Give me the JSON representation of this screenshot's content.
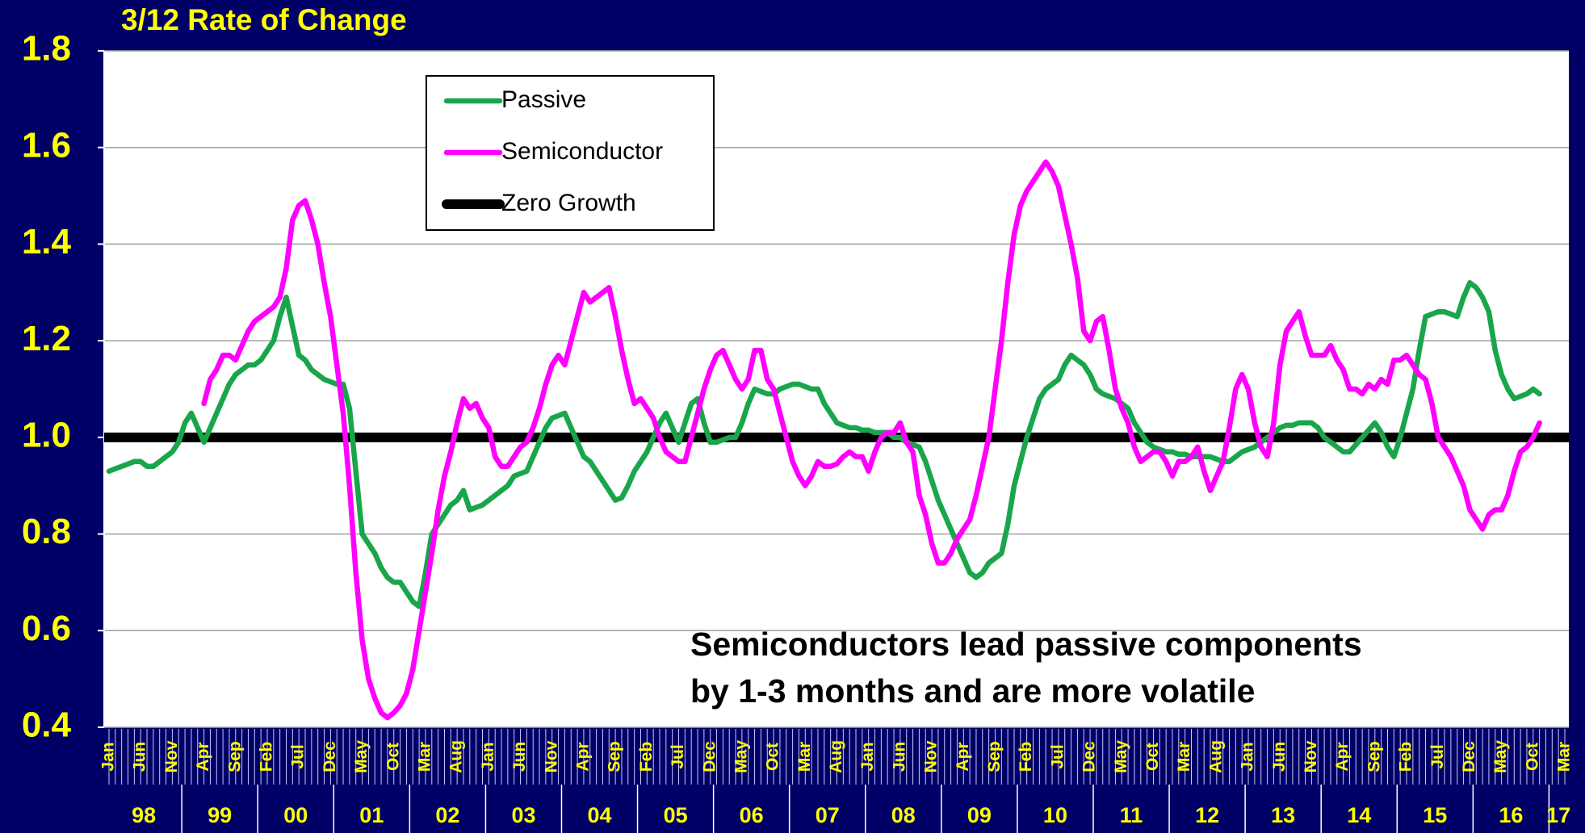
{
  "chart_data": {
    "type": "line",
    "title": "3/12 Rate of Change",
    "annotation": [
      "Semiconductors lead passive components",
      "by 1-3 months and are more volatile"
    ],
    "categories": [
      "Jan",
      null,
      null,
      null,
      null,
      "Jun",
      null,
      null,
      null,
      null,
      "Nov",
      null,
      null,
      null,
      null,
      "Apr",
      null,
      null,
      null,
      null,
      "Sep",
      null,
      null,
      null,
      null,
      "Feb",
      null,
      null,
      null,
      null,
      "Jul",
      null,
      null,
      null,
      null,
      "Dec",
      null,
      null,
      null,
      null,
      "May",
      null,
      null,
      null,
      null,
      "Oct",
      null,
      null,
      null,
      null,
      "Mar",
      null,
      null,
      null,
      null,
      "Aug",
      null,
      null,
      null,
      null,
      "Jan",
      null,
      null,
      null,
      null,
      "Jun",
      null,
      null,
      null,
      null,
      "Nov",
      null,
      null,
      null,
      null,
      "Apr",
      null,
      null,
      null,
      null,
      "Sep",
      null,
      null,
      null,
      null,
      "Feb",
      null,
      null,
      null,
      null,
      "Jul",
      null,
      null,
      null,
      null,
      "Dec",
      null,
      null,
      null,
      null,
      "May",
      null,
      null,
      null,
      null,
      "Oct",
      null,
      null,
      null,
      null,
      "Mar",
      null,
      null,
      null,
      null,
      "Aug",
      null,
      null,
      null,
      null,
      "Jan",
      null,
      null,
      null,
      null,
      "Jun",
      null,
      null,
      null,
      null,
      "Nov",
      null,
      null,
      null,
      null,
      "Apr",
      null,
      null,
      null,
      null,
      "Sep",
      null,
      null,
      null,
      null,
      "Feb",
      null,
      null,
      null,
      null,
      "Jul",
      null,
      null,
      null,
      null,
      "Dec",
      null,
      null,
      null,
      null,
      "May",
      null,
      null,
      null,
      null,
      "Oct",
      null,
      null,
      null,
      null,
      "Mar",
      null,
      null,
      null,
      null,
      "Aug",
      null,
      null,
      null,
      null,
      "Jan",
      null,
      null,
      null,
      null,
      "Jun",
      null,
      null,
      null,
      null,
      "Nov",
      null,
      null,
      null,
      null,
      "Apr",
      null,
      null,
      null,
      null,
      "Sep",
      null,
      null,
      null,
      null,
      "Feb",
      null,
      null,
      null,
      null,
      "Jul",
      null,
      null,
      null,
      null,
      "Dec",
      null,
      null,
      null,
      null,
      "May",
      null,
      null,
      null,
      null,
      "Oct",
      null,
      null,
      null,
      null,
      "Mar"
    ],
    "years": [
      "98",
      "99",
      "00",
      "01",
      "02",
      "03",
      "04",
      "05",
      "06",
      "07",
      "08",
      "09",
      "10",
      "11",
      "12",
      "13",
      "14",
      "15",
      "16",
      "17"
    ],
    "series": [
      {
        "name": "Passive",
        "color": "#19a64a",
        "values": [
          0.93,
          0.935,
          0.94,
          0.945,
          0.95,
          0.95,
          0.94,
          0.94,
          0.95,
          0.96,
          0.97,
          0.99,
          1.03,
          1.05,
          1.02,
          0.99,
          1.02,
          1.05,
          1.08,
          1.11,
          1.13,
          1.14,
          1.15,
          1.15,
          1.16,
          1.18,
          1.2,
          1.25,
          1.29,
          1.23,
          1.17,
          1.16,
          1.14,
          1.13,
          1.12,
          1.115,
          1.11,
          1.11,
          1.06,
          0.93,
          0.8,
          0.78,
          0.76,
          0.73,
          0.71,
          0.7,
          0.7,
          0.68,
          0.66,
          0.65,
          0.72,
          0.8,
          0.82,
          0.84,
          0.86,
          0.87,
          0.89,
          0.85,
          0.855,
          0.86,
          0.87,
          0.88,
          0.89,
          0.9,
          0.92,
          0.925,
          0.93,
          0.96,
          0.99,
          1.02,
          1.04,
          1.045,
          1.05,
          1.02,
          0.99,
          0.96,
          0.95,
          0.93,
          0.91,
          0.89,
          0.87,
          0.875,
          0.9,
          0.93,
          0.95,
          0.97,
          1.0,
          1.03,
          1.05,
          1.02,
          0.99,
          1.03,
          1.07,
          1.08,
          1.03,
          0.99,
          0.99,
          0.995,
          1.0,
          1.0,
          1.03,
          1.07,
          1.1,
          1.095,
          1.09,
          1.09,
          1.1,
          1.105,
          1.11,
          1.11,
          1.105,
          1.1,
          1.1,
          1.07,
          1.05,
          1.03,
          1.025,
          1.02,
          1.02,
          1.015,
          1.015,
          1.01,
          1.01,
          1.01,
          1.0,
          1.0,
          0.99,
          0.985,
          0.98,
          0.95,
          0.91,
          0.87,
          0.84,
          0.81,
          0.78,
          0.75,
          0.72,
          0.71,
          0.72,
          0.74,
          0.75,
          0.76,
          0.82,
          0.9,
          0.95,
          1.0,
          1.04,
          1.08,
          1.1,
          1.11,
          1.12,
          1.15,
          1.17,
          1.16,
          1.15,
          1.13,
          1.1,
          1.09,
          1.085,
          1.08,
          1.07,
          1.06,
          1.03,
          1.01,
          0.99,
          0.98,
          0.975,
          0.97,
          0.97,
          0.965,
          0.965,
          0.96,
          0.96,
          0.96,
          0.96,
          0.955,
          0.95,
          0.95,
          0.96,
          0.97,
          0.975,
          0.98,
          0.99,
          1.0,
          1.01,
          1.02,
          1.025,
          1.025,
          1.03,
          1.03,
          1.03,
          1.02,
          1.0,
          0.99,
          0.98,
          0.97,
          0.97,
          0.985,
          1.0,
          1.015,
          1.03,
          1.01,
          0.98,
          0.96,
          1.0,
          1.05,
          1.1,
          1.18,
          1.25,
          1.255,
          1.26,
          1.26,
          1.255,
          1.25,
          1.29,
          1.32,
          1.31,
          1.29,
          1.26,
          1.18,
          1.13,
          1.1,
          1.08,
          1.085,
          1.09,
          1.1,
          1.09,
          null,
          null,
          null,
          null
        ]
      },
      {
        "name": "Semiconductor",
        "color": "#ff00ff",
        "values": [
          null,
          null,
          null,
          null,
          null,
          null,
          null,
          null,
          null,
          null,
          null,
          null,
          null,
          null,
          null,
          1.07,
          1.12,
          1.14,
          1.17,
          1.17,
          1.16,
          1.19,
          1.22,
          1.24,
          1.25,
          1.26,
          1.27,
          1.29,
          1.35,
          1.45,
          1.48,
          1.49,
          1.45,
          1.4,
          1.32,
          1.25,
          1.15,
          1.05,
          0.9,
          0.72,
          0.58,
          0.5,
          0.46,
          0.43,
          0.42,
          0.43,
          0.445,
          0.47,
          0.52,
          0.6,
          0.68,
          0.76,
          0.85,
          0.92,
          0.97,
          1.03,
          1.08,
          1.06,
          1.07,
          1.04,
          1.02,
          0.96,
          0.94,
          0.94,
          0.96,
          0.98,
          0.99,
          1.02,
          1.06,
          1.11,
          1.15,
          1.17,
          1.15,
          1.2,
          1.25,
          1.3,
          1.28,
          1.29,
          1.3,
          1.31,
          1.25,
          1.18,
          1.12,
          1.07,
          1.08,
          1.06,
          1.04,
          1.0,
          0.97,
          0.96,
          0.95,
          0.95,
          1.0,
          1.05,
          1.1,
          1.14,
          1.17,
          1.18,
          1.15,
          1.12,
          1.1,
          1.12,
          1.18,
          1.18,
          1.12,
          1.1,
          1.05,
          1.0,
          0.95,
          0.92,
          0.9,
          0.92,
          0.95,
          0.94,
          0.94,
          0.945,
          0.96,
          0.97,
          0.96,
          0.96,
          0.93,
          0.97,
          1.0,
          1.01,
          1.01,
          1.03,
          0.99,
          0.97,
          0.88,
          0.84,
          0.78,
          0.74,
          0.74,
          0.76,
          0.79,
          0.81,
          0.83,
          0.88,
          0.94,
          1.0,
          1.1,
          1.2,
          1.32,
          1.42,
          1.48,
          1.51,
          1.53,
          1.55,
          1.57,
          1.55,
          1.52,
          1.46,
          1.4,
          1.33,
          1.22,
          1.2,
          1.24,
          1.25,
          1.18,
          1.1,
          1.06,
          1.03,
          0.98,
          0.95,
          0.96,
          0.97,
          0.97,
          0.95,
          0.92,
          0.95,
          0.95,
          0.96,
          0.98,
          0.93,
          0.89,
          0.92,
          0.95,
          1.02,
          1.1,
          1.13,
          1.1,
          1.03,
          0.98,
          0.96,
          1.03,
          1.15,
          1.22,
          1.24,
          1.26,
          1.21,
          1.17,
          1.17,
          1.17,
          1.19,
          1.16,
          1.14,
          1.1,
          1.1,
          1.09,
          1.11,
          1.1,
          1.12,
          1.11,
          1.16,
          1.16,
          1.17,
          1.15,
          1.13,
          1.12,
          1.07,
          1.0,
          0.98,
          0.96,
          0.93,
          0.9,
          0.85,
          0.83,
          0.81,
          0.84,
          0.85,
          0.85,
          0.88,
          0.93,
          0.97,
          0.98,
          1.0,
          1.03,
          null,
          null,
          null,
          null
        ]
      }
    ],
    "reference_line": {
      "name": "Zero Growth",
      "value": 1,
      "color": "#000000"
    },
    "ylim": [
      0.4,
      1.8
    ],
    "yticks": [
      0.4,
      0.6,
      0.8,
      {
        "value": 1,
        "label": "1.0"
      },
      1.2,
      1.4,
      1.6,
      1.8
    ],
    "grid": true
  }
}
